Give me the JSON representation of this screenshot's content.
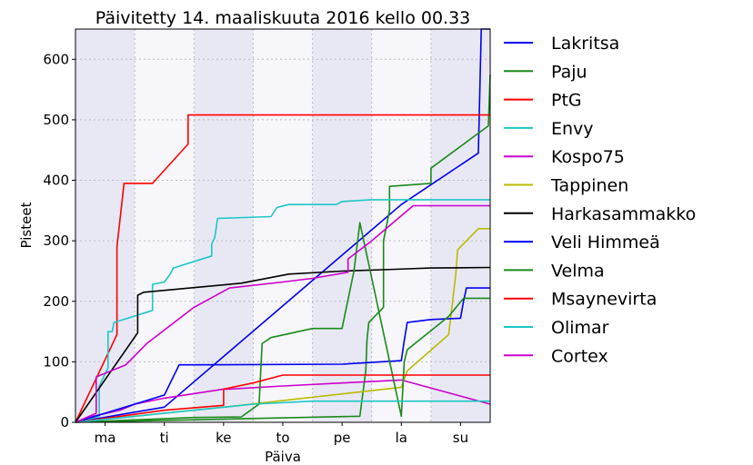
{
  "chart_data": {
    "type": "line",
    "title": "Päivitetty 14. maaliskuuta 2016 kello 00.33",
    "xlabel": "Päiva",
    "ylabel": "Pisteet",
    "xlim": [
      0,
      7
    ],
    "ylim": [
      0,
      650
    ],
    "x_ticks": [
      {
        "x": 0.5,
        "label": "ma"
      },
      {
        "x": 1.5,
        "label": "ti"
      },
      {
        "x": 2.5,
        "label": "ke"
      },
      {
        "x": 3.5,
        "label": "to"
      },
      {
        "x": 4.5,
        "label": "pe"
      },
      {
        "x": 5.5,
        "label": "la"
      },
      {
        "x": 6.5,
        "label": "su"
      }
    ],
    "y_ticks": [
      0,
      100,
      200,
      300,
      400,
      500,
      600
    ],
    "grid": true,
    "legend_position": "outside-right",
    "series": [
      {
        "name": "Lakritsa",
        "color": "#0000ee",
        "points": [
          [
            0,
            0
          ],
          [
            1.5,
            25
          ],
          [
            5.5,
            360
          ],
          [
            6.8,
            445
          ],
          [
            6.85,
            650
          ],
          [
            7,
            650
          ]
        ]
      },
      {
        "name": "Paju",
        "color": "#1a8a1a",
        "points": [
          [
            0,
            0
          ],
          [
            4.8,
            10
          ],
          [
            4.9,
            85
          ],
          [
            4.92,
            135
          ],
          [
            4.95,
            165
          ],
          [
            5.1,
            180
          ],
          [
            5.2,
            190
          ],
          [
            5.2,
            300
          ],
          [
            5.3,
            350
          ],
          [
            5.3,
            390
          ],
          [
            6.0,
            395
          ],
          [
            6.0,
            420
          ],
          [
            6.97,
            490
          ],
          [
            7,
            575
          ]
        ]
      },
      {
        "name": "PtG",
        "color": "#ff0000",
        "points": [
          [
            0,
            0
          ],
          [
            0.7,
            145
          ],
          [
            0.7,
            290
          ],
          [
            0.82,
            395
          ],
          [
            1.3,
            395
          ],
          [
            1.9,
            460
          ],
          [
            1.9,
            508
          ],
          [
            7,
            508
          ]
        ]
      },
      {
        "name": "Envy",
        "color": "#1cc6c6",
        "points": [
          [
            0,
            0
          ],
          [
            0.4,
            10
          ],
          [
            0.4,
            60
          ],
          [
            0.55,
            90
          ],
          [
            0.55,
            150
          ],
          [
            0.62,
            150
          ],
          [
            0.65,
            165
          ],
          [
            1.3,
            185
          ],
          [
            1.3,
            228
          ],
          [
            1.5,
            232
          ],
          [
            1.6,
            245
          ],
          [
            1.65,
            255
          ],
          [
            2.3,
            275
          ],
          [
            2.3,
            295
          ],
          [
            2.35,
            305
          ],
          [
            2.4,
            337
          ],
          [
            3.3,
            340
          ],
          [
            3.4,
            355
          ],
          [
            3.6,
            360
          ],
          [
            4.4,
            360
          ],
          [
            4.5,
            365
          ],
          [
            5.0,
            368
          ],
          [
            7,
            368
          ]
        ]
      },
      {
        "name": "Kospo75",
        "color": "#cc00cc",
        "points": [
          [
            0,
            0
          ],
          [
            0.3,
            10
          ],
          [
            0.75,
            20
          ],
          [
            1.0,
            30
          ],
          [
            1.5,
            40
          ],
          [
            2.5,
            55
          ],
          [
            2.6,
            55
          ],
          [
            3.5,
            60
          ],
          [
            4.5,
            65
          ],
          [
            5.5,
            70
          ],
          [
            7,
            30
          ]
        ]
      },
      {
        "name": "Tappinen",
        "color": "#bbbb00",
        "points": [
          [
            0,
            0
          ],
          [
            2.5,
            25
          ],
          [
            5.5,
            58
          ],
          [
            5.6,
            85
          ],
          [
            6.3,
            145
          ],
          [
            6.42,
            245
          ],
          [
            6.45,
            285
          ],
          [
            6.8,
            320
          ],
          [
            7,
            320
          ]
        ]
      },
      {
        "name": "Harkasammakko",
        "color": "#000000",
        "points": [
          [
            0,
            0
          ],
          [
            1.05,
            148
          ],
          [
            1.05,
            210
          ],
          [
            1.15,
            215
          ],
          [
            2.8,
            230
          ],
          [
            3.6,
            245
          ],
          [
            4.5,
            250
          ],
          [
            5.4,
            253
          ],
          [
            6.0,
            255
          ],
          [
            7,
            256
          ]
        ]
      },
      {
        "name": "Veli Himmeä",
        "color": "#0000ee",
        "points": [
          [
            0,
            0
          ],
          [
            1.5,
            45
          ],
          [
            1.75,
            95
          ],
          [
            2.0,
            95
          ],
          [
            4.5,
            96
          ],
          [
            5.5,
            102
          ],
          [
            5.55,
            135
          ],
          [
            5.6,
            165
          ],
          [
            6.0,
            170
          ],
          [
            6.5,
            172
          ],
          [
            6.55,
            200
          ],
          [
            6.6,
            222
          ],
          [
            7,
            222
          ]
        ]
      },
      {
        "name": "Velma",
        "color": "#1a8a1a",
        "points": [
          [
            0,
            0
          ],
          [
            2.0,
            8
          ],
          [
            2.8,
            9
          ],
          [
            3.1,
            30
          ],
          [
            3.15,
            130
          ],
          [
            3.3,
            140
          ],
          [
            4.0,
            155
          ],
          [
            4.5,
            155
          ],
          [
            4.7,
            250
          ],
          [
            4.8,
            330
          ],
          [
            5.5,
            10
          ],
          [
            5.55,
            100
          ],
          [
            5.6,
            120
          ],
          [
            6.3,
            175
          ],
          [
            6.55,
            205
          ],
          [
            7,
            205
          ]
        ]
      },
      {
        "name": "Msaynevirta",
        "color": "#ff0000",
        "points": [
          [
            0,
            0
          ],
          [
            1.5,
            20
          ],
          [
            2.5,
            28
          ],
          [
            2.5,
            55
          ],
          [
            3.0,
            65
          ],
          [
            3.5,
            78
          ],
          [
            5.5,
            78
          ],
          [
            7,
            78
          ]
        ]
      },
      {
        "name": "Olimar",
        "color": "#1cc6c6",
        "points": [
          [
            0,
            0
          ],
          [
            2.0,
            20
          ],
          [
            3.0,
            30
          ],
          [
            4.0,
            35
          ],
          [
            7,
            35
          ]
        ]
      },
      {
        "name": "Cortex",
        "color": "#cc00cc",
        "points": [
          [
            0,
            0
          ],
          [
            0.35,
            15
          ],
          [
            0.35,
            75
          ],
          [
            0.85,
            95
          ],
          [
            1.2,
            130
          ],
          [
            2.0,
            190
          ],
          [
            2.6,
            222
          ],
          [
            3.5,
            232
          ],
          [
            4.0,
            238
          ],
          [
            4.6,
            248
          ],
          [
            4.6,
            270
          ],
          [
            5.0,
            300
          ],
          [
            5.7,
            358
          ],
          [
            7,
            358
          ]
        ]
      }
    ]
  }
}
